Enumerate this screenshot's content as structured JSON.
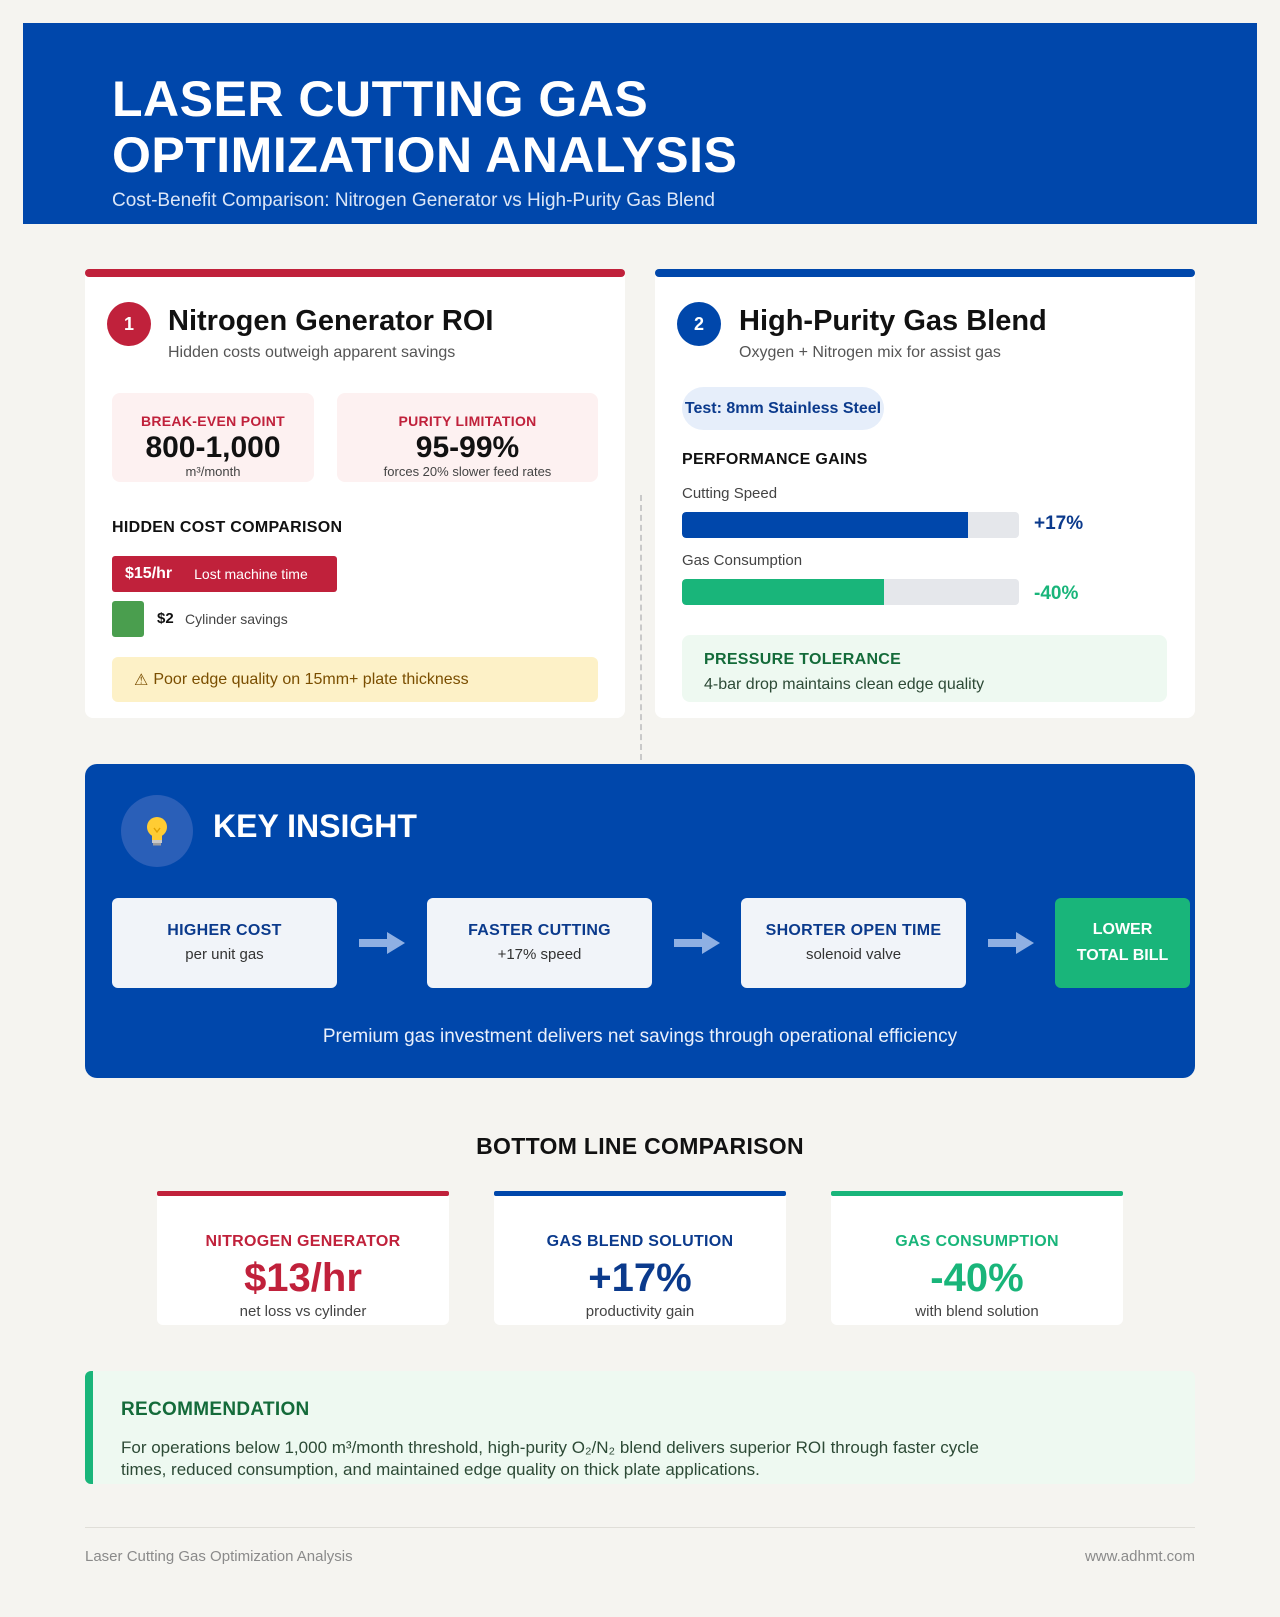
{
  "header": {
    "title_line1": "LASER CUTTING GAS",
    "title_line2": "OPTIMIZATION ANALYSIS",
    "subtitle": "Cost-Benefit Comparison: Nitrogen Generator vs High-Purity Gas Blend"
  },
  "card1": {
    "number": "1",
    "title": "Nitrogen Generator ROI",
    "subtitle": "Hidden costs outweigh apparent savings",
    "accent": "#c0213b",
    "stats": [
      {
        "label": "BREAK-EVEN POINT",
        "value": "800-1,000",
        "unit": "m³/month"
      },
      {
        "label": "PURITY LIMITATION",
        "value": "95-99%",
        "unit": "forces 20% slower feed rates"
      }
    ],
    "section_label": "HIDDEN COST COMPARISON",
    "cost_bar": {
      "amount": "$15/hr",
      "desc": "Lost machine time",
      "value": 15
    },
    "savings": {
      "amount": "$2",
      "desc": "Cylinder savings",
      "value": 2
    },
    "warning_icon": "⚠",
    "warning_text": "Poor edge quality on 15mm+ plate thickness"
  },
  "card2": {
    "number": "2",
    "title": "High-Purity Gas Blend",
    "subtitle": "Oxygen + Nitrogen mix for assist gas",
    "accent": "#0047ab",
    "test_pill": "Test: 8mm Stainless Steel",
    "section_label": "PERFORMANCE GAINS",
    "bars": [
      {
        "label": "Cutting Speed",
        "value_text": "+17%",
        "fill": 0.85,
        "color": "#0047ab"
      },
      {
        "label": "Gas Consumption",
        "value_text": "-40%",
        "fill": 0.6,
        "color": "#19b57a"
      }
    ],
    "pressure_title": "PRESSURE TOLERANCE",
    "pressure_desc": "4-bar drop maintains clean edge quality"
  },
  "insight": {
    "icon": "lightbulb-icon",
    "title": "KEY INSIGHT",
    "steps": [
      {
        "title": "HIGHER COST",
        "sub": "per unit gas"
      },
      {
        "title": "FASTER CUTTING",
        "sub": "+17% speed"
      },
      {
        "title": "SHORTER OPEN TIME",
        "sub": "solenoid valve"
      }
    ],
    "final_line1": "LOWER",
    "final_line2": "TOTAL BILL",
    "tagline": "Premium gas investment delivers net savings through operational efficiency"
  },
  "bottom_line": {
    "title": "BOTTOM LINE COMPARISON",
    "cards": [
      {
        "title": "NITROGEN GENERATOR",
        "value": "$13/hr",
        "sub": "net loss vs cylinder",
        "color": "#c0213b"
      },
      {
        "title": "GAS BLEND SOLUTION",
        "value": "+17%",
        "sub": "productivity gain",
        "color": "#0b3a8c"
      },
      {
        "title": "GAS CONSUMPTION",
        "value": "-40%",
        "sub": "with blend solution",
        "color": "#19b57a"
      }
    ]
  },
  "recommendation": {
    "title": "RECOMMENDATION",
    "text": "For operations below 1,000 m³/month threshold, high-purity O₂/N₂ blend delivers superior ROI through faster cycle times, reduced consumption, and maintained edge quality on thick plate applications."
  },
  "footer": {
    "left": "Laser Cutting Gas Optimization Analysis",
    "right": "www.adhmt.com"
  }
}
